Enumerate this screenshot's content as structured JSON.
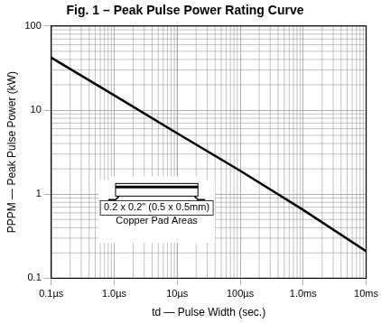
{
  "chart_data": {
    "type": "line",
    "title": "Fig. 1 – Peak Pulse Power Rating Curve",
    "x_label": "td — Pulse Width (sec.)",
    "y_label": "PPPM — Peak Pulse Power (kW)",
    "log": true,
    "grid": true,
    "color": "#000000",
    "x": [
      1e-07,
      1e-06,
      1e-05,
      0.0001,
      0.001,
      0.01
    ],
    "values": [
      42,
      15,
      5.3,
      1.9,
      0.65,
      0.21
    ],
    "xlim": [
      1e-07,
      0.01
    ],
    "ylim": [
      0.1,
      100
    ],
    "xticks": [
      {
        "value": 1e-07,
        "label": "0.1µs"
      },
      {
        "value": 1e-06,
        "label": "1.0µs"
      },
      {
        "value": 1e-05,
        "label": "10µs"
      },
      {
        "value": 0.0001,
        "label": "100µs"
      },
      {
        "value": 0.001,
        "label": "1.0ms"
      },
      {
        "value": 0.01,
        "label": "10ms"
      }
    ],
    "yticks": [
      0.1,
      1,
      10,
      100
    ],
    "annotations": [
      "0.2 x 0.2\" (0.5 x 0.5mm)",
      "Copper Pad Areas"
    ]
  }
}
